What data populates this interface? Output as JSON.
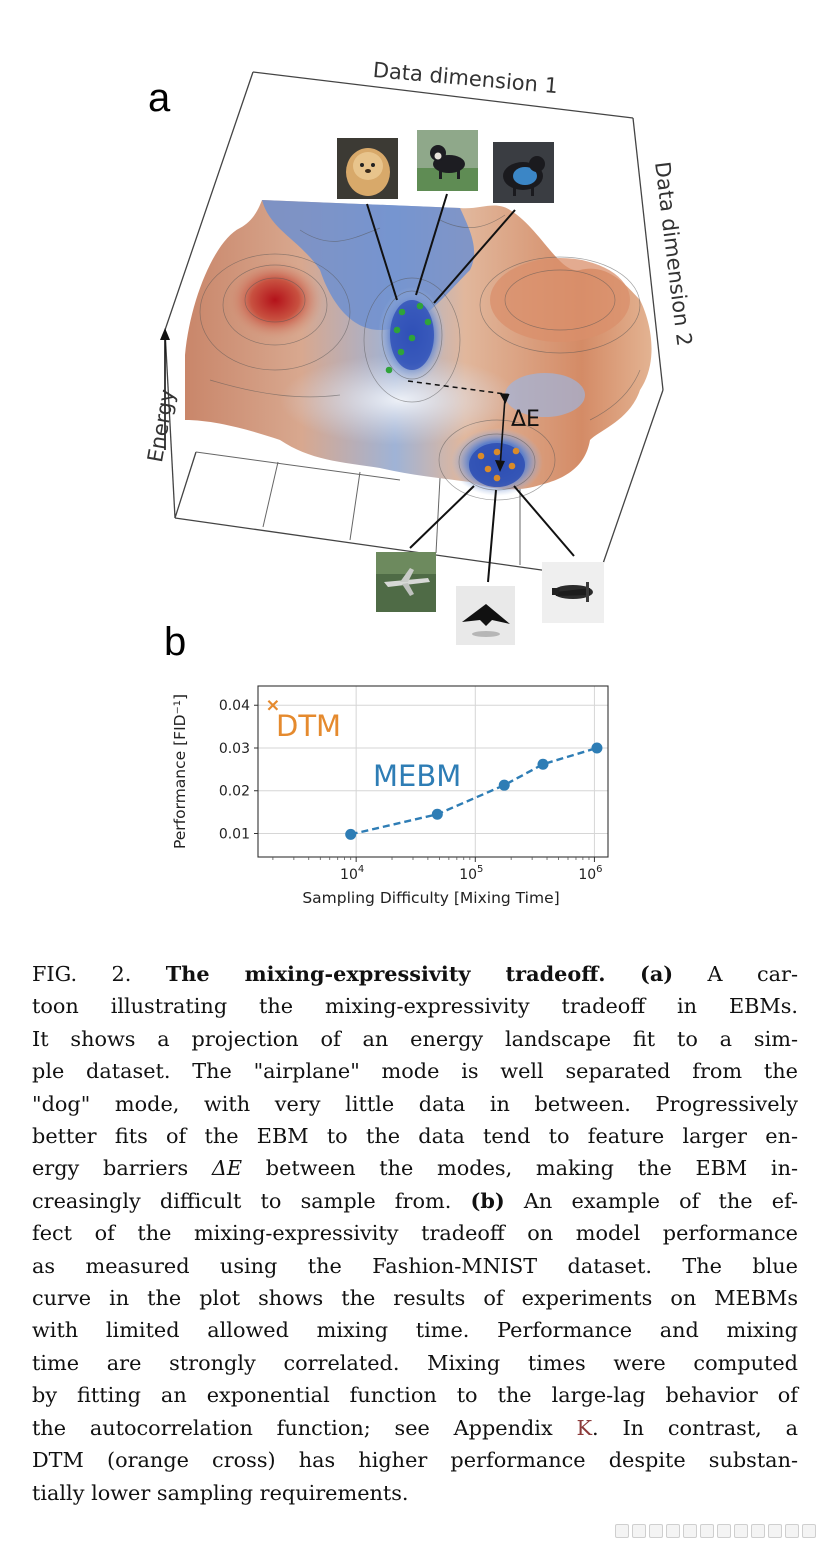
{
  "figure_a": {
    "panel_label": "a",
    "axis_data_dim_1": "Data dimension 1",
    "axis_data_dim_2": "Data dimension 2",
    "axis_energy": "Energy",
    "barrier_label": "ΔE",
    "dog_images": [
      "pekingese-dog-photo",
      "chihuahua-dog-on-grass-photo",
      "dog-in-blue-vest-photo"
    ],
    "airplane_images": [
      "fighter-jet-photo",
      "stealth-bomber-photo",
      "propeller-plane-photo"
    ]
  },
  "figure_b": {
    "panel_label": "b"
  },
  "chart_data": {
    "type": "line",
    "x_scale": "log",
    "xlabel": "Sampling Difficulty [Mixing Time]",
    "ylabel": "Performance [FID⁻¹]",
    "xlim": [
      1500,
      1300000
    ],
    "ylim": [
      0.0045,
      0.0445
    ],
    "x_ticks": [
      10000,
      100000,
      1000000
    ],
    "x_tick_labels": [
      "10",
      "10",
      "10"
    ],
    "x_tick_exponents": [
      "4",
      "5",
      "6"
    ],
    "y_ticks": [
      0.01,
      0.02,
      0.03,
      0.04
    ],
    "y_tick_labels": [
      "0.01",
      "0.02",
      "0.03",
      "0.04"
    ],
    "grid": true,
    "series": [
      {
        "name": "MEBM",
        "label": "MEBM",
        "color": "#2e7db5",
        "marker": "circle",
        "linestyle": "dashed",
        "x": [
          9000,
          48000,
          175000,
          370000,
          1050000
        ],
        "y": [
          0.0098,
          0.0145,
          0.0213,
          0.0262,
          0.03
        ]
      },
      {
        "name": "DTM",
        "label": "DTM",
        "color": "#e58a2e",
        "marker": "x",
        "x": [
          2000
        ],
        "y": [
          0.04
        ]
      }
    ]
  },
  "caption": {
    "lines": [
      [
        "FIG. 2. ",
        "The mixing-expressivity tradeoff.",
        " ",
        "(a)",
        " A car-"
      ],
      [
        "toon illustrating the mixing-expressivity tradeoff in EBMs."
      ],
      [
        "It shows a projection of an energy landscape fit to a sim-"
      ],
      [
        "ple dataset. The \"airplane\" mode is well separated from the"
      ],
      [
        "\"dog\" mode, with very little data in between. Progressively"
      ],
      [
        "better fits of the EBM to the data tend to feature larger en-"
      ],
      [
        "ergy barriers ",
        "ΔE",
        " between the modes, making the EBM in-"
      ],
      [
        "creasingly difficult to sample from. ",
        "(b)",
        " An example of the ef-"
      ],
      [
        "fect of the mixing-expressivity tradeoff on model performance"
      ],
      [
        "as measured using the Fashion-MNIST dataset.  The blue"
      ],
      [
        "curve in the plot shows the results of experiments on MEBMs"
      ],
      [
        "with limited allowed mixing time.  Performance and mixing"
      ],
      [
        "time are strongly correlated.  Mixing times were computed"
      ],
      [
        "by fitting an exponential function to the large-lag behavior of"
      ],
      [
        "the autocorrelation function; see Appendix ",
        "K",
        ". In contrast, a"
      ],
      [
        "DTM (orange cross) has higher performance despite substan-"
      ],
      [
        "tially lower sampling requirements."
      ]
    ]
  }
}
